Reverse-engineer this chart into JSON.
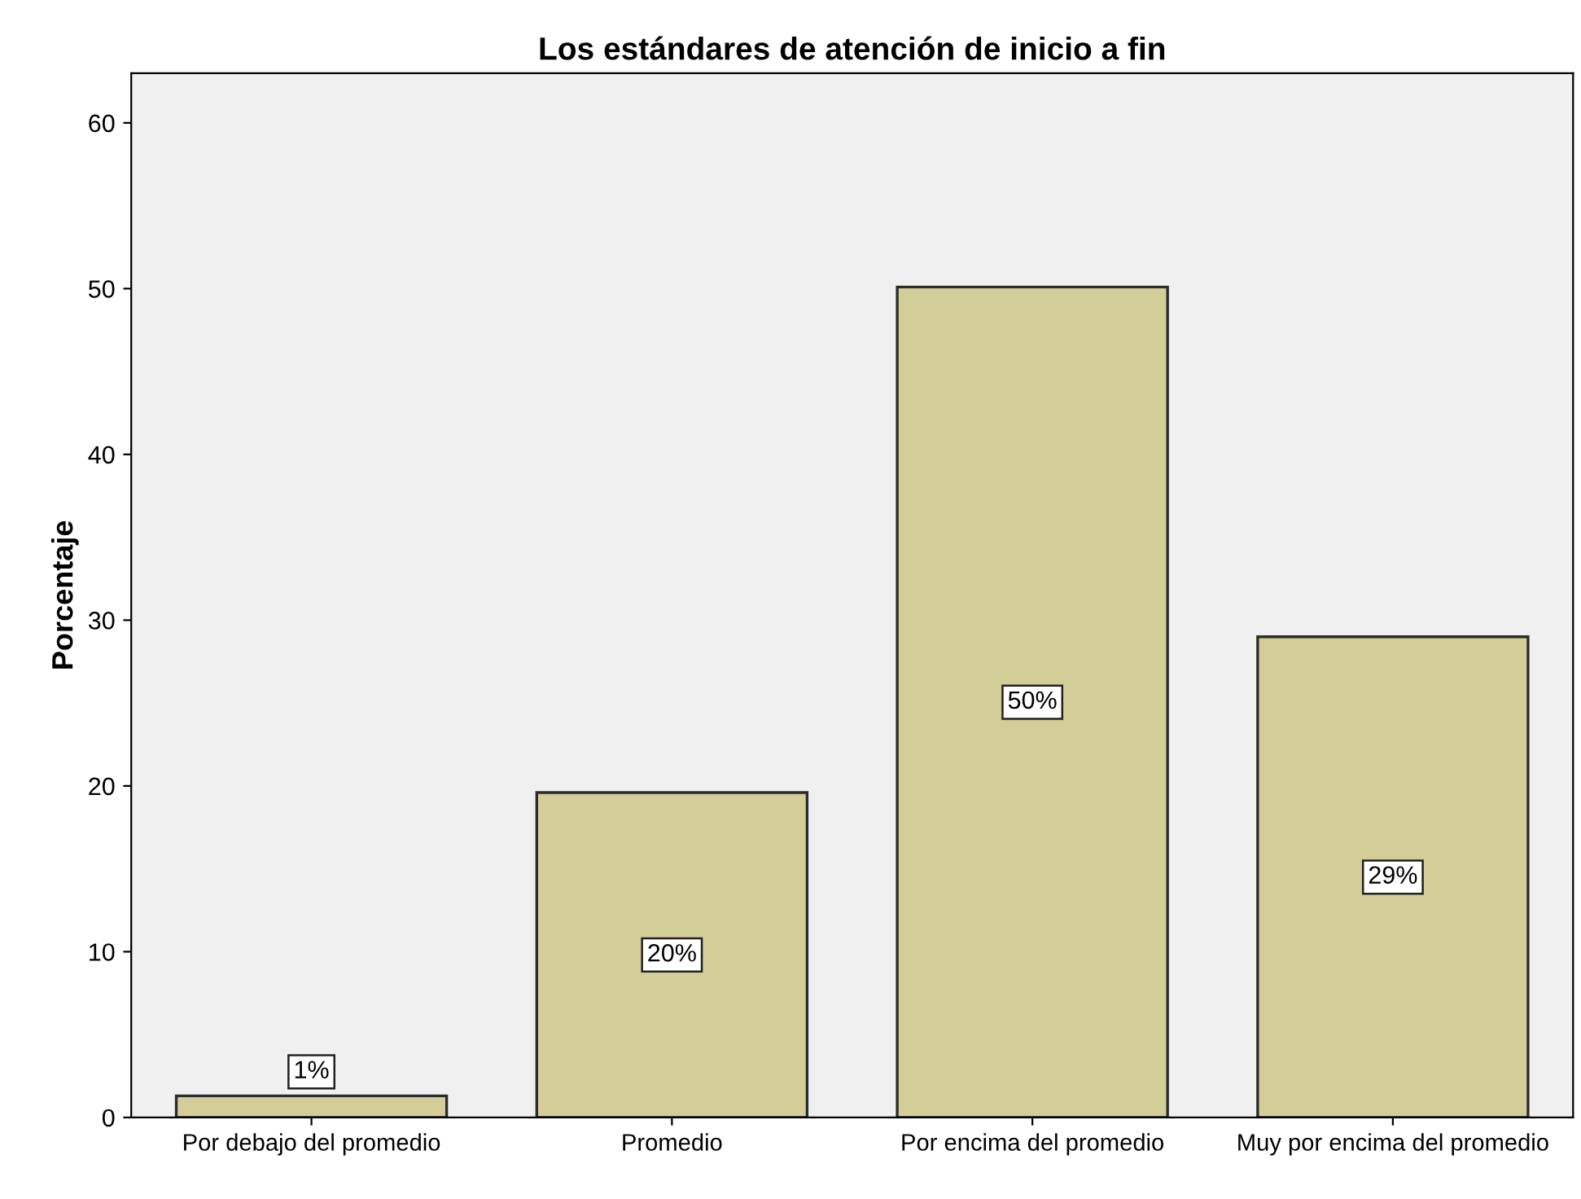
{
  "chart_data": {
    "type": "bar",
    "title": "Los estándares de atención de inicio a fin",
    "ylabel": "Porcentaje",
    "categories": [
      "Por debajo del promedio",
      "Promedio",
      "Por encima del promedio",
      "Muy por encima del promedio"
    ],
    "values": [
      1.3,
      19.6,
      50.1,
      29.0
    ],
    "value_labels": [
      "1%",
      "20%",
      "50%",
      "29%"
    ],
    "color": "#d3ce98",
    "ylim": [
      0,
      63
    ],
    "yticks": [
      0,
      10,
      20,
      30,
      40,
      50,
      60
    ],
    "grid": false,
    "legend": false
  }
}
